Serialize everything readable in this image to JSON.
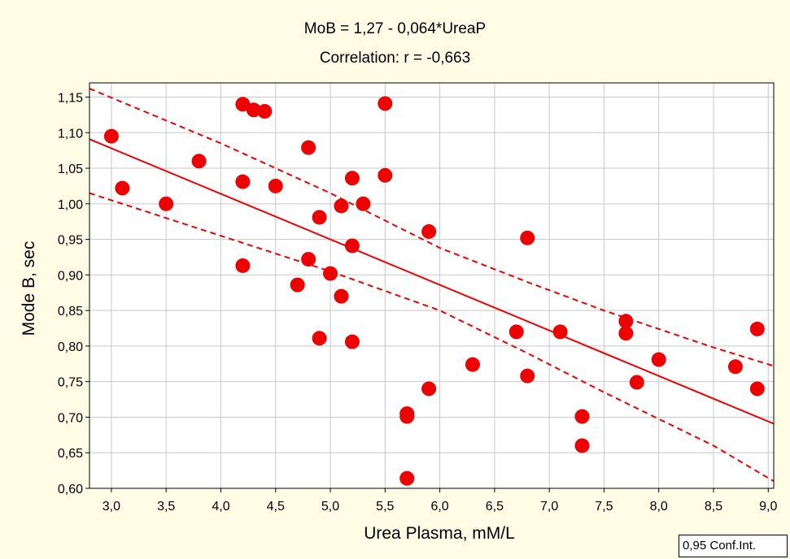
{
  "chart_data": {
    "type": "scatter",
    "title": "MoB  = 1,27 - 0,064*UreaP",
    "subtitle": "Correlation: r = -0,663",
    "xlabel": "Urea Plasma, mM/L",
    "ylabel": "Mode B, sec",
    "xlim": [
      2.8,
      9.05
    ],
    "ylim": [
      0.6,
      1.17
    ],
    "xticks": [
      3.0,
      3.5,
      4.0,
      4.5,
      5.0,
      5.5,
      6.0,
      6.5,
      7.0,
      7.5,
      8.0,
      8.5,
      9.0
    ],
    "xtick_labels": [
      "3,0",
      "3,5",
      "4,0",
      "4,5",
      "5,0",
      "5,5",
      "6,0",
      "6,5",
      "7,0",
      "7,5",
      "8,0",
      "8,5",
      "9,0"
    ],
    "yticks": [
      0.6,
      0.65,
      0.7,
      0.75,
      0.8,
      0.85,
      0.9,
      0.95,
      1.0,
      1.05,
      1.1,
      1.15
    ],
    "ytick_labels": [
      "0,60",
      "0,65",
      "0,70",
      "0,75",
      "0,80",
      "0,85",
      "0,90",
      "0,95",
      "1,00",
      "1,05",
      "1,10",
      "1,15"
    ],
    "grid": true,
    "point_color": "#ee0000",
    "line_color": "#ee0000",
    "regression": {
      "intercept": 1.27,
      "slope": -0.064
    },
    "confidence_band": {
      "upper": [
        [
          2.8,
          1.162
        ],
        [
          4.0,
          1.085
        ],
        [
          5.0,
          1.015
        ],
        [
          6.0,
          0.938
        ],
        [
          6.8,
          0.89
        ],
        [
          7.5,
          0.85
        ],
        [
          8.5,
          0.798
        ],
        [
          9.05,
          0.772
        ]
      ],
      "lower": [
        [
          2.8,
          1.015
        ],
        [
          4.0,
          0.955
        ],
        [
          5.0,
          0.905
        ],
        [
          6.0,
          0.85
        ],
        [
          6.8,
          0.79
        ],
        [
          7.5,
          0.735
        ],
        [
          8.5,
          0.66
        ],
        [
          9.05,
          0.61
        ]
      ]
    },
    "points": [
      [
        3.0,
        1.095
      ],
      [
        3.1,
        1.022
      ],
      [
        3.5,
        1.0
      ],
      [
        3.8,
        1.06
      ],
      [
        4.2,
        1.14
      ],
      [
        4.3,
        1.132
      ],
      [
        4.4,
        1.13
      ],
      [
        4.2,
        1.031
      ],
      [
        4.2,
        0.913
      ],
      [
        4.5,
        1.025
      ],
      [
        4.8,
        1.079
      ],
      [
        4.8,
        0.922
      ],
      [
        4.7,
        0.886
      ],
      [
        4.9,
        0.981
      ],
      [
        4.9,
        0.811
      ],
      [
        5.0,
        0.902
      ],
      [
        5.1,
        0.997
      ],
      [
        5.1,
        0.87
      ],
      [
        5.2,
        1.036
      ],
      [
        5.2,
        0.941
      ],
      [
        5.2,
        0.806
      ],
      [
        5.3,
        1.0
      ],
      [
        5.5,
        1.141
      ],
      [
        5.5,
        1.04
      ],
      [
        5.7,
        0.705
      ],
      [
        5.7,
        0.701
      ],
      [
        5.7,
        0.614
      ],
      [
        5.9,
        0.961
      ],
      [
        5.9,
        0.74
      ],
      [
        6.3,
        0.774
      ],
      [
        6.7,
        0.82
      ],
      [
        6.8,
        0.952
      ],
      [
        6.8,
        0.758
      ],
      [
        7.1,
        0.82
      ],
      [
        7.3,
        0.701
      ],
      [
        7.3,
        0.66
      ],
      [
        7.7,
        0.835
      ],
      [
        7.7,
        0.818
      ],
      [
        7.8,
        0.749
      ],
      [
        8.0,
        0.781
      ],
      [
        8.7,
        0.771
      ],
      [
        8.9,
        0.824
      ],
      [
        8.9,
        0.74
      ]
    ]
  },
  "legend": {
    "ci_label": "0,95 Conf.Int."
  }
}
